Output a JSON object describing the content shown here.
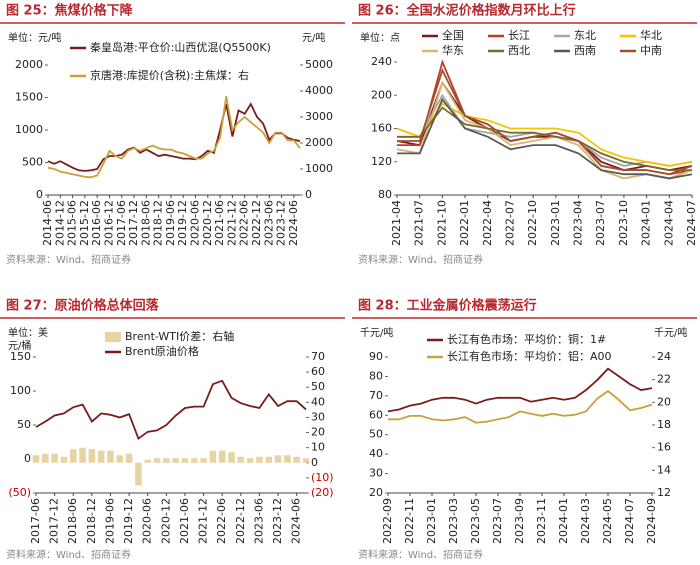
{
  "chart_data": [
    {
      "type": "line",
      "title": "图 25：焦煤价格下降",
      "y_unit": [
        "单位：元/吨"
      ],
      "y2_unit": "元/吨",
      "source": "资料来源：Wind、招商证券",
      "categories": [
        "2014-06",
        null,
        "2014-12",
        null,
        "2015-06",
        null,
        "2015-12",
        null,
        "2016-06",
        null,
        "2016-12",
        null,
        "2017-06",
        null,
        "2017-12",
        null,
        "2018-06",
        null,
        "2018-12",
        null,
        "2019-06",
        null,
        "2019-12",
        null,
        "2020-06",
        null,
        "2020-12",
        null,
        "2021-06",
        null,
        "2021-12",
        null,
        "2022-06",
        null,
        "2022-12",
        null,
        "2023-06",
        null,
        "2023-12",
        null,
        "2024-06",
        null
      ],
      "ylim": [
        0,
        2000
      ],
      "yticks": [
        0,
        500,
        1000,
        1500,
        2000
      ],
      "y2lim": [
        0,
        5000
      ],
      "y2ticks": [
        0,
        1000,
        2000,
        3000,
        4000,
        5000
      ],
      "series": [
        {
          "name": "秦皇岛港:平仓价:山西优混(Q5500K)",
          "color": "#7b1c1c",
          "values": [
            520,
            480,
            520,
            470,
            420,
            380,
            370,
            380,
            400,
            550,
            600,
            600,
            620,
            700,
            730,
            650,
            700,
            650,
            600,
            620,
            600,
            580,
            560,
            560,
            550,
            600,
            680,
            650,
            1000,
            1400,
            900,
            1300,
            1250,
            1400,
            1200,
            1100,
            850,
            950,
            950,
            880,
            850,
            830
          ]
        },
        {
          "name": "京唐港:库提价(含税):主焦煤：右",
          "color": "#c9a13a",
          "axis": "y2",
          "values": [
            1050,
            1000,
            900,
            850,
            800,
            750,
            700,
            680,
            750,
            1200,
            1700,
            1500,
            1400,
            1700,
            1800,
            1700,
            1800,
            1900,
            1800,
            1750,
            1750,
            1650,
            1600,
            1500,
            1400,
            1400,
            1600,
            1700,
            2200,
            3800,
            2500,
            2800,
            3000,
            2800,
            2600,
            2400,
            2000,
            2400,
            2400,
            2100,
            2100,
            1800
          ]
        }
      ]
    },
    {
      "type": "line",
      "title": "图 26：全国水泥价格指数月环比上行",
      "y_unit": [
        "单位：点"
      ],
      "source": "资料来源：Wind、招商证券",
      "categories": [
        "2021-04",
        "2021-07",
        "2021-10",
        "2022-01",
        "2022-04",
        "2022-07",
        "2022-10",
        "2023-01",
        "2023-04",
        "2023-07",
        "2023-10",
        "2024-01",
        "2024-04",
        "2024-07"
      ],
      "ylim": [
        80,
        240
      ],
      "yticks": [
        80,
        120,
        160,
        200,
        240
      ],
      "series": [
        {
          "name": "全国",
          "color": "#7b1c1c",
          "values": [
            145,
            140,
            215,
            175,
            160,
            145,
            150,
            150,
            145,
            120,
            110,
            115,
            110,
            115
          ]
        },
        {
          "name": "长江",
          "color": "#c0392b",
          "values": [
            140,
            140,
            240,
            175,
            165,
            145,
            150,
            155,
            145,
            115,
            110,
            110,
            105,
            110
          ]
        },
        {
          "name": "东北",
          "color": "#a6a6a6",
          "values": [
            150,
            150,
            200,
            160,
            155,
            150,
            155,
            150,
            145,
            125,
            115,
            120,
            115,
            120
          ]
        },
        {
          "name": "华北",
          "color": "#f5c400",
          "values": [
            160,
            150,
            190,
            175,
            170,
            160,
            160,
            160,
            155,
            135,
            125,
            120,
            115,
            120
          ]
        },
        {
          "name": "华东",
          "color": "#d9b46e",
          "values": [
            135,
            130,
            215,
            170,
            160,
            140,
            145,
            150,
            140,
            110,
            100,
            105,
            100,
            110
          ]
        },
        {
          "name": "西北",
          "color": "#7a6a2a",
          "values": [
            150,
            150,
            185,
            165,
            160,
            155,
            155,
            150,
            145,
            130,
            120,
            115,
            110,
            110
          ]
        },
        {
          "name": "西南",
          "color": "#595959",
          "values": [
            130,
            130,
            195,
            160,
            150,
            135,
            140,
            140,
            130,
            110,
            105,
            105,
            100,
            105
          ]
        },
        {
          "name": "中南",
          "color": "#a0522d",
          "values": [
            145,
            145,
            230,
            175,
            165,
            145,
            150,
            155,
            145,
            115,
            110,
            110,
            105,
            115
          ]
        }
      ]
    },
    {
      "type": "line",
      "title": "图 27：原油价格总体回落",
      "y_unit": [
        "单位：美",
        "元/桶"
      ],
      "source": "资料来源：Wind、招商证券",
      "categories": [
        "2017-06",
        null,
        "2017-12",
        null,
        "2018-06",
        null,
        "2018-12",
        null,
        "2019-06",
        null,
        "2019-12",
        null,
        "2020-06",
        null,
        "2020-12",
        null,
        "2021-06",
        null,
        "2021-12",
        null,
        "2022-06",
        null,
        "2022-12",
        null,
        "2023-06",
        null,
        "2023-12",
        null,
        "2024-06",
        null
      ],
      "ylim": [
        -50,
        150
      ],
      "yticks": [
        {
          "value": -50,
          "label": "(50)"
        },
        0,
        50,
        100,
        150
      ],
      "y2lim": [
        -20,
        70
      ],
      "y2ticks": [
        {
          "value": -20,
          "label": "(20)"
        },
        {
          "value": -10,
          "label": "(10)"
        },
        0,
        10,
        20,
        30,
        40,
        50,
        60,
        70
      ],
      "series": [
        {
          "name": "Brent-WTI价差：右轴",
          "color": "#e8d3a2",
          "axis": "y2",
          "type": "bar",
          "values": [
            5,
            6,
            6,
            4,
            9,
            10,
            9,
            8,
            8,
            5,
            6,
            -15,
            2,
            3,
            3,
            3,
            3,
            3,
            3,
            8,
            8,
            7,
            4,
            3,
            4,
            4,
            5,
            5,
            4,
            3
          ]
        },
        {
          "name": "Brent原油价格",
          "color": "#7b1c1c",
          "values": [
            47,
            55,
            64,
            67,
            76,
            80,
            55,
            67,
            65,
            61,
            66,
            30,
            40,
            42,
            50,
            64,
            75,
            77,
            77,
            110,
            115,
            90,
            82,
            78,
            75,
            95,
            78,
            85,
            85,
            73
          ]
        }
      ]
    },
    {
      "type": "line",
      "title": "图 28：工业金属价格震荡运行",
      "y_unit": [
        "千元/吨"
      ],
      "y2_unit": "千元/吨",
      "source": "资料来源：Wind、招商证券",
      "categories": [
        "2022-09",
        null,
        "2022-11",
        null,
        "2023-01",
        null,
        "2023-03",
        null,
        "2023-05",
        null,
        "2023-07",
        null,
        "2023-09",
        null,
        "2023-11",
        null,
        "2024-01",
        null,
        "2024-03",
        null,
        "2024-05",
        null,
        "2024-07",
        null,
        "2024-09"
      ],
      "ylim": [
        20,
        90
      ],
      "yticks": [
        20,
        30,
        40,
        50,
        60,
        70,
        80,
        90
      ],
      "y2lim": [
        12,
        24
      ],
      "y2ticks": [
        12,
        14,
        16,
        18,
        20,
        22,
        24
      ],
      "series": [
        {
          "name": "长江有色市场：平均价：铜：1#",
          "color": "#7b1c1c",
          "values": [
            62,
            63,
            65,
            66,
            68,
            69,
            69,
            68,
            66,
            68,
            69,
            69,
            69,
            67,
            68,
            69,
            68,
            69,
            73,
            78,
            84,
            80,
            76,
            73,
            74
          ]
        },
        {
          "name": "长江有色市场：平均价：铝：A00",
          "color": "#c9a13a",
          "axis": "y2",
          "values": [
            18.5,
            18.5,
            18.8,
            18.8,
            18.5,
            18.4,
            18.5,
            18.7,
            18.2,
            18.3,
            18.5,
            18.7,
            19.2,
            19.0,
            18.8,
            19.0,
            18.8,
            18.9,
            19.2,
            20.3,
            21.0,
            20.2,
            19.3,
            19.5,
            19.8
          ]
        }
      ]
    }
  ]
}
